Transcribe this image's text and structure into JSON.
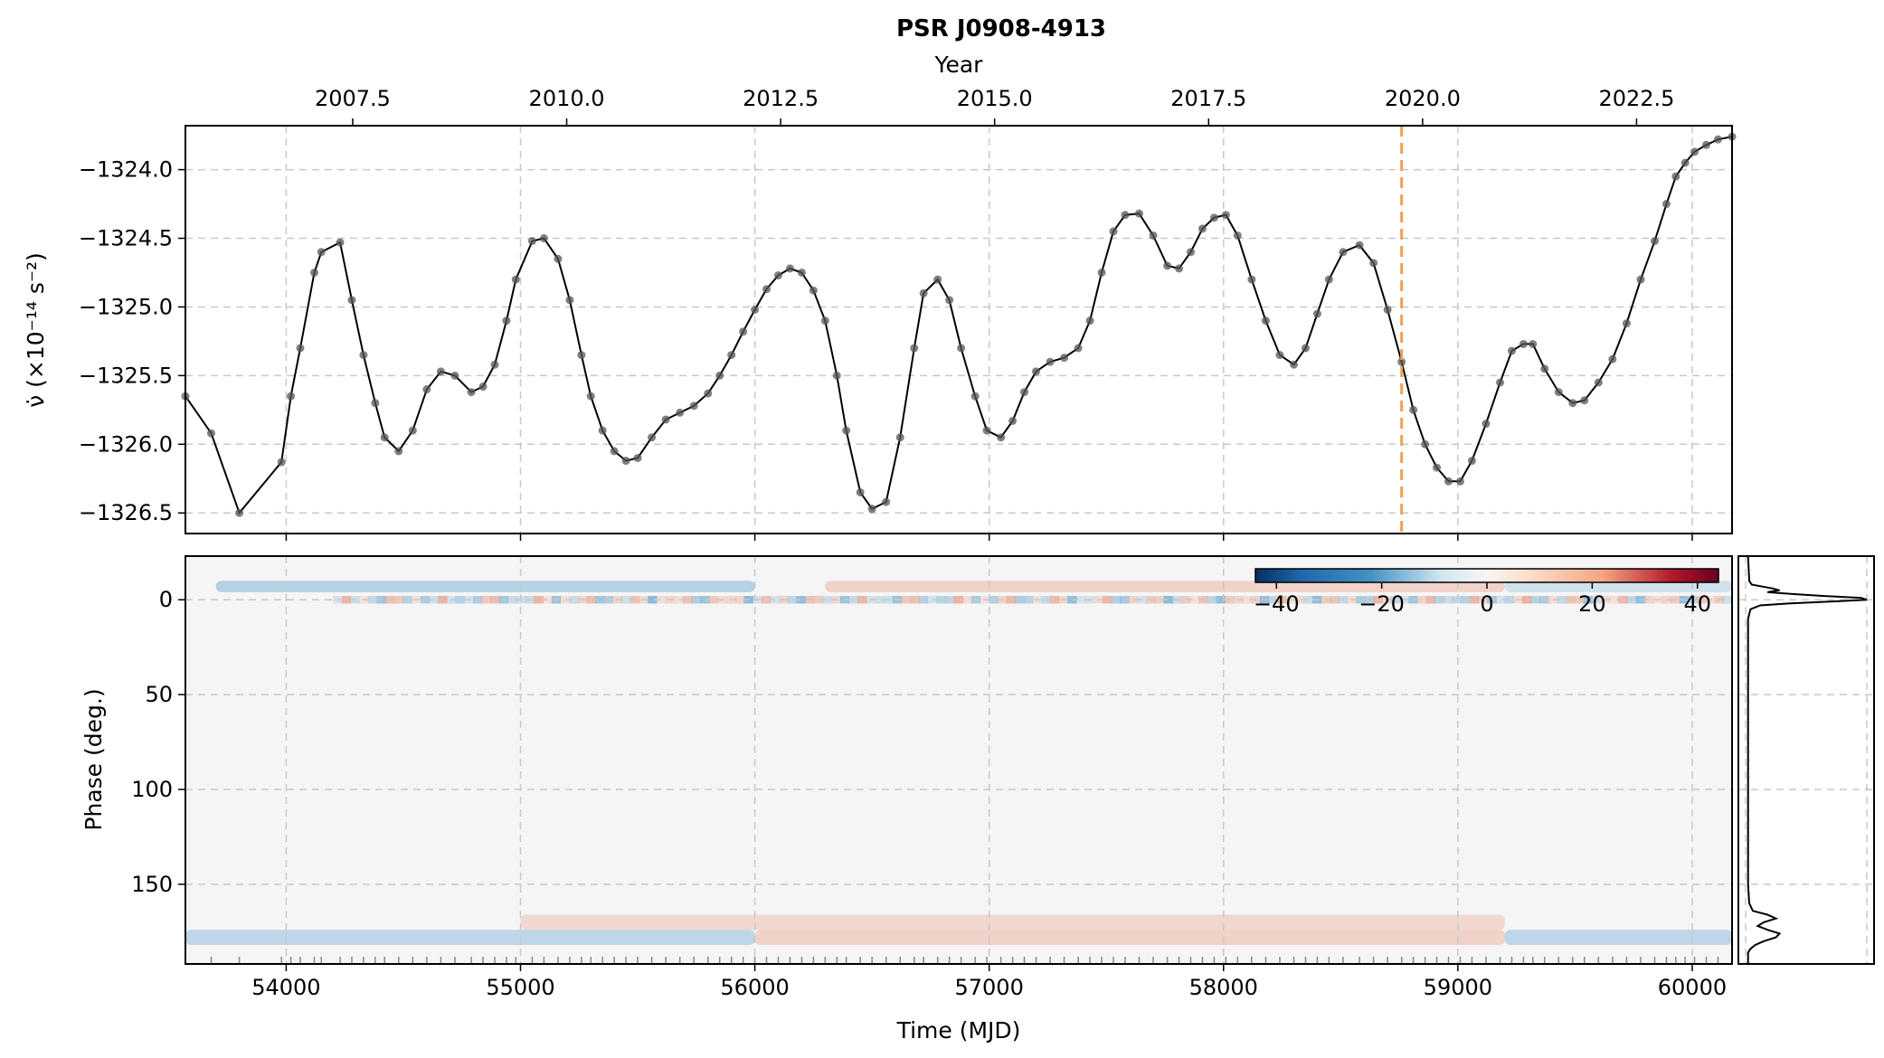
{
  "chart_data": [
    {
      "type": "line",
      "title": "PSR J0908-4913",
      "top_axis_label": "Year",
      "top_ticks": [
        "2007.5",
        "2010.0",
        "2012.5",
        "2015.0",
        "2017.5",
        "2020.0",
        "2022.5"
      ],
      "top_tick_values": [
        2007.5,
        2010.0,
        2012.5,
        2015.0,
        2017.5,
        2020.0,
        2022.5
      ],
      "xlabel": "",
      "ylabel": "ν̇ (×10⁻¹⁴ s⁻²)",
      "xlim": [
        53570,
        60170
      ],
      "ylim": [
        -1326.65,
        -1323.68
      ],
      "y_ticks": [
        "−1324.0",
        "−1324.5",
        "−1325.0",
        "−1325.5",
        "−1326.0",
        "−1326.5"
      ],
      "y_tick_values": [
        -1324.0,
        -1324.5,
        -1325.0,
        -1325.5,
        -1326.0,
        -1326.5
      ],
      "grid": true,
      "vertical_marker_mjd": 58760,
      "vertical_marker_color": "#f4a04a",
      "series": [
        {
          "color": "#000000",
          "x": [
            53570,
            53680,
            53800,
            53980,
            54020,
            54060,
            54120,
            54150,
            54230,
            54280,
            54330,
            54380,
            54420,
            54480,
            54540,
            54600,
            54660,
            54720,
            54790,
            54840,
            54890,
            54940,
            54980,
            55050,
            55100,
            55160,
            55210,
            55260,
            55300,
            55350,
            55400,
            55450,
            55500,
            55560,
            55620,
            55680,
            55740,
            55800,
            55850,
            55900,
            55950,
            56000,
            56050,
            56100,
            56150,
            56200,
            56250,
            56300,
            56350,
            56390,
            56450,
            56500,
            56560,
            56620,
            56680,
            56720,
            56780,
            56830,
            56880,
            56940,
            56990,
            57050,
            57100,
            57150,
            57200,
            57260,
            57320,
            57380,
            57430,
            57480,
            57530,
            57580,
            57640,
            57700,
            57760,
            57810,
            57860,
            57910,
            57960,
            58010,
            58060,
            58120,
            58180,
            58240,
            58300,
            58350,
            58400,
            58450,
            58510,
            58580,
            58640,
            58700,
            58760,
            58810,
            58860,
            58910,
            58960,
            59010,
            59060,
            59120,
            59180,
            59230,
            59280,
            59320,
            59370,
            59430,
            59490,
            59540,
            59600,
            59660,
            59720,
            59780,
            59840,
            59890,
            59930,
            59970,
            60010,
            60060,
            60110,
            60170
          ],
          "y": [
            -1325.65,
            -1325.92,
            -1326.5,
            -1326.13,
            -1325.65,
            -1325.3,
            -1324.75,
            -1324.6,
            -1324.53,
            -1324.95,
            -1325.35,
            -1325.7,
            -1325.95,
            -1326.05,
            -1325.9,
            -1325.6,
            -1325.47,
            -1325.5,
            -1325.62,
            -1325.58,
            -1325.42,
            -1325.1,
            -1324.8,
            -1324.52,
            -1324.5,
            -1324.65,
            -1324.95,
            -1325.35,
            -1325.65,
            -1325.9,
            -1326.05,
            -1326.12,
            -1326.1,
            -1325.95,
            -1325.82,
            -1325.77,
            -1325.72,
            -1325.63,
            -1325.5,
            -1325.35,
            -1325.18,
            -1325.02,
            -1324.87,
            -1324.77,
            -1324.72,
            -1324.75,
            -1324.88,
            -1325.1,
            -1325.5,
            -1325.9,
            -1326.35,
            -1326.47,
            -1326.42,
            -1325.95,
            -1325.3,
            -1324.9,
            -1324.8,
            -1324.95,
            -1325.3,
            -1325.65,
            -1325.9,
            -1325.95,
            -1325.83,
            -1325.62,
            -1325.47,
            -1325.4,
            -1325.37,
            -1325.3,
            -1325.1,
            -1324.75,
            -1324.45,
            -1324.33,
            -1324.32,
            -1324.48,
            -1324.7,
            -1324.72,
            -1324.6,
            -1324.43,
            -1324.35,
            -1324.33,
            -1324.48,
            -1324.8,
            -1325.1,
            -1325.35,
            -1325.42,
            -1325.3,
            -1325.05,
            -1324.8,
            -1324.6,
            -1324.55,
            -1324.68,
            -1325.02,
            -1325.4,
            -1325.75,
            -1326.0,
            -1326.17,
            -1326.27,
            -1326.27,
            -1326.12,
            -1325.85,
            -1325.55,
            -1325.32,
            -1325.27,
            -1325.27,
            -1325.45,
            -1325.62,
            -1325.7,
            -1325.68,
            -1325.55,
            -1325.38,
            -1325.12,
            -1324.8,
            -1324.52,
            -1324.25,
            -1324.05,
            -1323.95,
            -1323.87,
            -1323.82,
            -1323.78,
            -1323.76
          ]
        }
      ]
    },
    {
      "type": "heatmap",
      "xlabel": "Time (MJD)",
      "ylabel": "Phase (deg.)",
      "xlim": [
        53570,
        60170
      ],
      "ylim": [
        -23,
        192
      ],
      "x_ticks": [
        "54000",
        "55000",
        "56000",
        "57000",
        "58000",
        "59000",
        "60000"
      ],
      "x_tick_values": [
        54000,
        55000,
        56000,
        57000,
        58000,
        59000,
        60000
      ],
      "y_ticks": [
        "0",
        "50",
        "100",
        "150"
      ],
      "y_tick_values": [
        0,
        50,
        100,
        150
      ],
      "grid": true,
      "colorbar": {
        "colormap": "RdBu_r",
        "range": [
          -44,
          44
        ],
        "ticks": [
          "−40",
          "−20",
          "0",
          "20",
          "40"
        ],
        "tick_values": [
          -40,
          -20,
          0,
          20,
          40
        ],
        "location": "top-right"
      },
      "features": [
        {
          "phase_min": -10,
          "phase_max": -4,
          "mjd_start": 53700,
          "mjd_end": 56000,
          "sign": "negative",
          "strength": 0.35
        },
        {
          "phase_min": -10,
          "phase_max": -4,
          "mjd_start": 56300,
          "mjd_end": 59200,
          "sign": "positive",
          "strength": 0.3
        },
        {
          "phase_min": -10,
          "phase_max": -4,
          "mjd_start": 59200,
          "mjd_end": 60170,
          "sign": "negative",
          "strength": 0.2
        },
        {
          "phase_min": -2,
          "phase_max": 2,
          "mjd_start": 54200,
          "mjd_end": 60170,
          "sign": "mixed",
          "strength": 0.7
        },
        {
          "phase_min": 166,
          "phase_max": 174,
          "mjd_start": 55000,
          "mjd_end": 59200,
          "sign": "positive",
          "strength": 0.25
        },
        {
          "phase_min": 174,
          "phase_max": 182,
          "mjd_start": 53570,
          "mjd_end": 56000,
          "sign": "negative",
          "strength": 0.3
        },
        {
          "phase_min": 174,
          "phase_max": 182,
          "mjd_start": 56000,
          "mjd_end": 59200,
          "sign": "positive",
          "strength": 0.3
        },
        {
          "phase_min": 174,
          "phase_max": 182,
          "mjd_start": 59200,
          "mjd_end": 60170,
          "sign": "negative",
          "strength": 0.3
        }
      ]
    },
    {
      "type": "line",
      "description": "average pulse profile",
      "ylim": [
        -23,
        192
      ],
      "phase": [
        -23,
        -10,
        -8,
        -6,
        -5,
        -4,
        -3,
        -2,
        -1,
        0,
        1,
        2,
        3,
        5,
        10,
        50,
        100,
        150,
        160,
        164,
        166,
        168,
        170,
        172,
        174,
        176,
        178,
        180,
        182,
        184,
        186,
        192
      ],
      "intensity": [
        0.02,
        0.03,
        0.05,
        0.22,
        0.28,
        0.18,
        0.4,
        0.65,
        0.95,
        1.0,
        0.7,
        0.35,
        0.12,
        0.04,
        0.02,
        0.02,
        0.02,
        0.02,
        0.03,
        0.06,
        0.18,
        0.25,
        0.15,
        0.1,
        0.18,
        0.28,
        0.25,
        0.15,
        0.08,
        0.04,
        0.02,
        0.02
      ]
    }
  ]
}
